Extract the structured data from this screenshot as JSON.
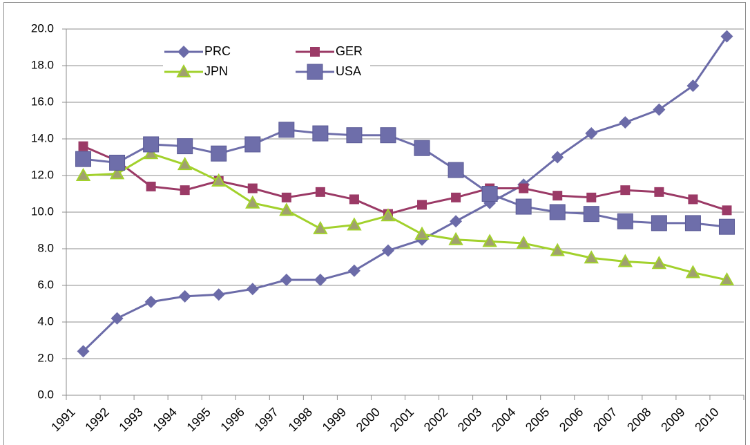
{
  "chart_data": {
    "type": "line",
    "categories": [
      "1991",
      "1992",
      "1993",
      "1994",
      "1995",
      "1996",
      "1997",
      "1998",
      "1999",
      "2000",
      "2001",
      "2002",
      "2003",
      "2004",
      "2005",
      "2006",
      "2007",
      "2008",
      "2009",
      "2010"
    ],
    "series": [
      {
        "name": "PRC",
        "color": "#6b6ba8",
        "marker": "diamond",
        "values": [
          2.4,
          4.2,
          5.1,
          5.4,
          5.5,
          5.8,
          6.3,
          6.3,
          6.8,
          7.9,
          8.5,
          9.5,
          10.5,
          11.5,
          13.0,
          14.3,
          14.9,
          15.6,
          16.9,
          19.6
        ]
      },
      {
        "name": "GER",
        "color": "#9b3a66",
        "marker": "square",
        "values": [
          13.6,
          12.8,
          11.4,
          11.2,
          11.7,
          11.3,
          10.8,
          11.1,
          10.7,
          9.9,
          10.4,
          10.8,
          11.3,
          11.3,
          10.9,
          10.8,
          11.2,
          11.1,
          10.7,
          10.1
        ]
      },
      {
        "name": "JPN",
        "color": "#a2d12c",
        "marker": "triangle",
        "values": [
          12.0,
          12.1,
          13.2,
          12.6,
          11.7,
          10.5,
          10.1,
          9.1,
          9.3,
          9.8,
          8.8,
          8.5,
          8.4,
          8.3,
          7.9,
          7.5,
          7.3,
          7.2,
          6.7,
          6.3
        ]
      },
      {
        "name": "USA",
        "color": "#6e6eaa",
        "marker": "bigsquare",
        "values": [
          12.9,
          12.7,
          13.7,
          13.6,
          13.2,
          13.7,
          14.5,
          14.3,
          14.2,
          14.2,
          13.5,
          12.3,
          11.0,
          10.3,
          10.0,
          9.9,
          9.5,
          9.4,
          9.4,
          9.2
        ]
      }
    ],
    "ylim": [
      0,
      20
    ],
    "yticks": [
      {
        "value": 0,
        "label": "0.0"
      },
      {
        "value": 2,
        "label": "2.0"
      },
      {
        "value": 4,
        "label": "4.0"
      },
      {
        "value": 6,
        "label": "6.0"
      },
      {
        "value": 8,
        "label": "8.0"
      },
      {
        "value": 10,
        "label": "10.0"
      },
      {
        "value": 12,
        "label": "12.0"
      },
      {
        "value": 14,
        "label": "14.0"
      },
      {
        "value": 16,
        "label": "16.0"
      },
      {
        "value": 18,
        "label": "18.0"
      },
      {
        "value": 20,
        "label": "20.0"
      }
    ],
    "grid": true
  }
}
